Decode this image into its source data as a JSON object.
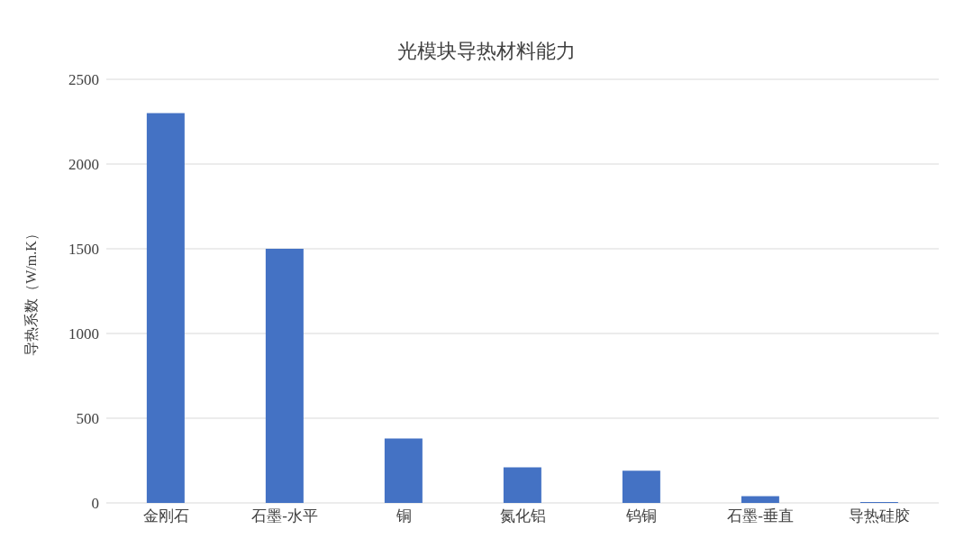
{
  "chart_data": {
    "type": "bar",
    "title": "光模块导热材料能力",
    "ylabel": "导热系数（W/m.K）",
    "categories": [
      "金刚石",
      "石墨-水平",
      "铜",
      "氮化铝",
      "钨铜",
      "石墨-垂直",
      "导热硅胶"
    ],
    "values": [
      2300,
      1500,
      380,
      210,
      190,
      40,
      5
    ],
    "color": "#4472c4",
    "ylim": [
      0,
      2500
    ],
    "yticks": [
      0,
      500,
      1000,
      1500,
      2000,
      2500
    ],
    "grid": "y",
    "legend": false
  }
}
